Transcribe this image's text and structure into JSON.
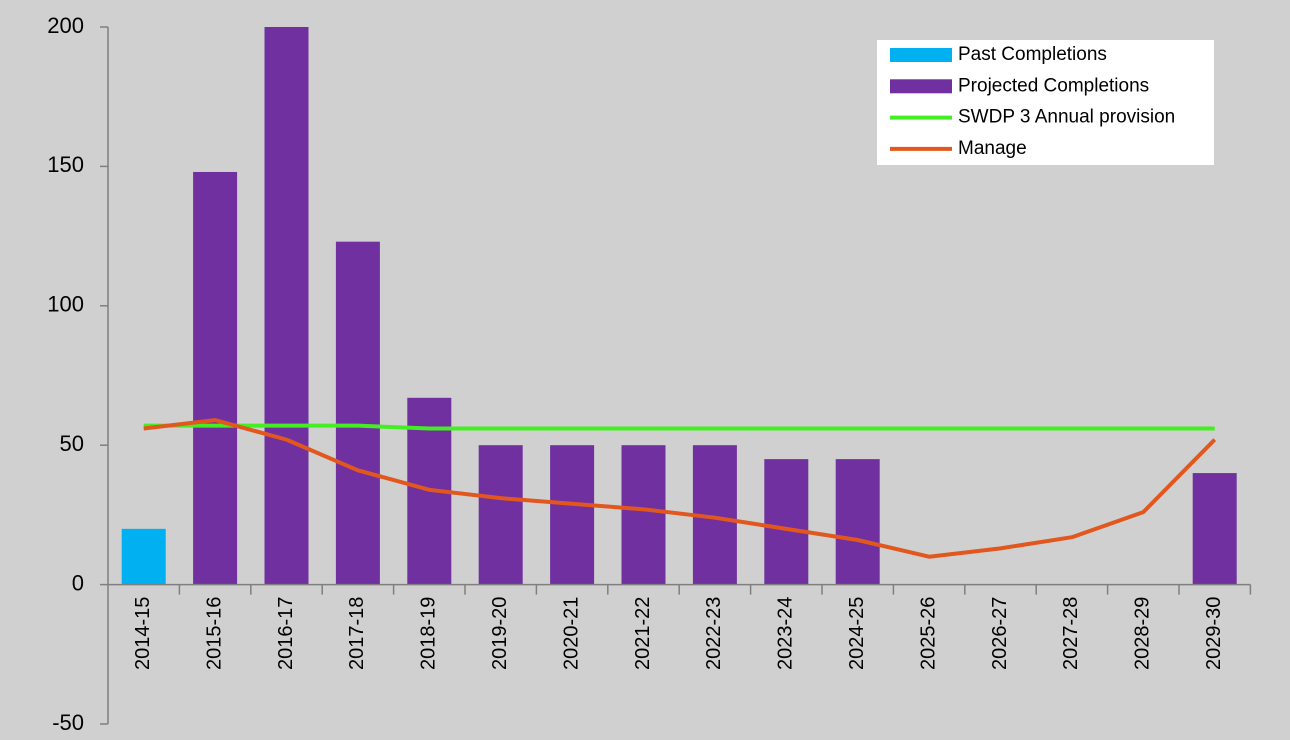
{
  "chart_data": {
    "type": "bar",
    "categories": [
      "2014-15",
      "2015-16",
      "2016-17",
      "2017-18",
      "2018-19",
      "2019-20",
      "2020-21",
      "2021-22",
      "2022-23",
      "2023-24",
      "2024-25",
      "2025-26",
      "2026-27",
      "2027-28",
      "2028-29",
      "2029-30"
    ],
    "series": [
      {
        "name": "Past Completions",
        "type": "bar",
        "color": "#00b0f0",
        "values": [
          20,
          null,
          null,
          null,
          null,
          null,
          null,
          null,
          null,
          null,
          null,
          null,
          null,
          null,
          null,
          null
        ]
      },
      {
        "name": "Projected Completions",
        "type": "bar",
        "color": "#7030a0",
        "values": [
          null,
          148,
          200,
          123,
          67,
          50,
          50,
          50,
          50,
          45,
          45,
          null,
          null,
          null,
          null,
          40
        ]
      },
      {
        "name": "SWDP 3 Annual provision",
        "type": "line",
        "color": "#44ee22",
        "values": [
          57,
          57,
          57,
          57,
          56,
          56,
          56,
          56,
          56,
          56,
          56,
          56,
          56,
          56,
          56,
          56
        ]
      },
      {
        "name": "Manage",
        "type": "line",
        "color": "#e2571e",
        "values": [
          56,
          59,
          52,
          41,
          34,
          31,
          29,
          27,
          24,
          20,
          16,
          10,
          13,
          17,
          26,
          52
        ]
      }
    ],
    "ylim": [
      -50,
      200
    ],
    "yticks": [
      -50,
      0,
      50,
      100,
      150,
      200
    ],
    "legend": "upper right"
  }
}
